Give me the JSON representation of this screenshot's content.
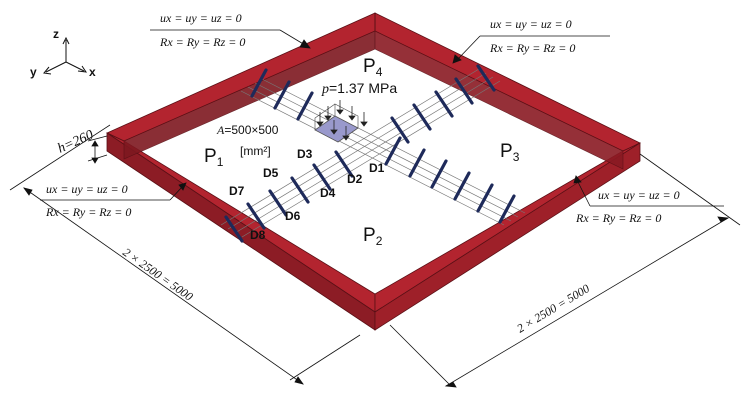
{
  "axes": {
    "z": "z",
    "y": "y",
    "x": "x"
  },
  "panels": {
    "p1": "P",
    "p1_sub": "1",
    "p2": "P",
    "p2_sub": "2",
    "p3": "P",
    "p3_sub": "3",
    "p4": "P",
    "p4_sub": "4"
  },
  "load": {
    "p_symbol": "p",
    "p_value": "=1.37 MPa",
    "area_symbol": "A",
    "area_value": "=500×500",
    "area_unit": "[mm²]"
  },
  "height_label": "h=260",
  "detectors": [
    "D1",
    "D2",
    "D3",
    "D4",
    "D5",
    "D6",
    "D7",
    "D8"
  ],
  "boundary_conditions": {
    "translation": "ux = uy = uz = 0",
    "rotation": "Rx = Ry = Rz = 0"
  },
  "dimensions": {
    "left": "2 × 2500 = 5000",
    "right": "2 × 2500 = 5000"
  },
  "colors": {
    "wall": "#b3242f",
    "wall_dark": "#7e1820",
    "bar": "#1e2a5a",
    "patch": "#9999cc"
  }
}
